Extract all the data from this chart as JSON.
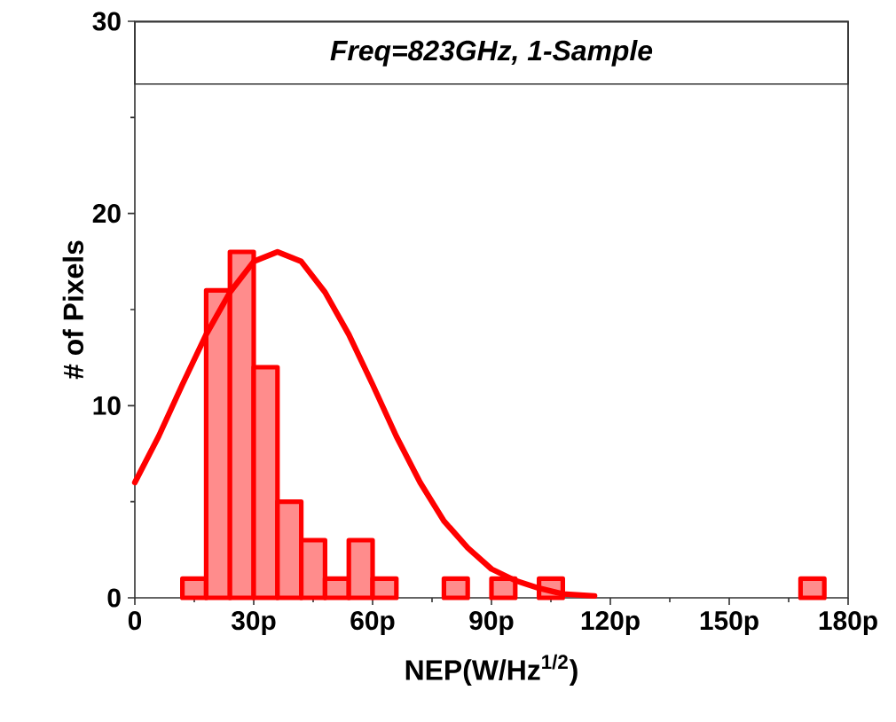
{
  "chart_data": {
    "type": "histogram",
    "title": "Freq=823GHz, 1-Sample",
    "xlabel": "NEP(W/Hz$^{1/2}$)",
    "ylabel": "# of Pixels",
    "bins": [
      12,
      18,
      24,
      30,
      36,
      42,
      48,
      54,
      60,
      66,
      72,
      78,
      84,
      90,
      96,
      102,
      108,
      114,
      120,
      126,
      132,
      138,
      144,
      150,
      156,
      162,
      168,
      174
    ],
    "values": [
      1,
      16,
      18,
      12,
      5,
      3,
      1,
      3,
      1,
      0,
      0,
      1,
      0,
      1,
      0,
      1,
      0,
      0,
      0,
      0,
      0,
      0,
      0,
      0,
      0,
      0,
      1
    ],
    "color": "#ff0000",
    "series": [
      {
        "type": "line",
        "color": "#ff0000",
        "x": [
          0,
          6,
          12,
          18,
          24,
          30,
          36,
          42,
          48,
          54,
          60,
          66,
          72,
          78,
          84,
          90,
          96,
          102,
          108,
          116
        ],
        "values": [
          6.0,
          8.4,
          11.1,
          13.7,
          15.9,
          17.5,
          18,
          17.5,
          15.9,
          13.7,
          11.1,
          8.4,
          6.0,
          4.0,
          2.6,
          1.5,
          0.9,
          0.5,
          0.2,
          0.1
        ]
      }
    ],
    "xlim": [
      0,
      180
    ],
    "xticks": [
      0,
      {
        "value": 30,
        "label": "30p"
      },
      {
        "value": 60,
        "label": "60p"
      },
      {
        "value": 90,
        "label": "90p"
      },
      {
        "value": 120,
        "label": "120p"
      },
      {
        "value": 150,
        "label": "150p"
      },
      {
        "value": 180,
        "label": "180p"
      }
    ],
    "ylim": [
      0,
      30
    ],
    "yticks": [
      0,
      10,
      20,
      30
    ]
  }
}
